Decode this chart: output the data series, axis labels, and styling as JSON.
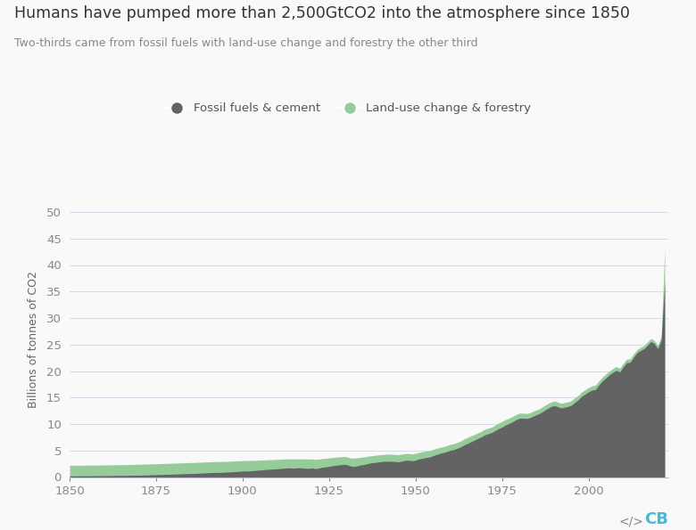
{
  "title": "Humans have pumped more than 2,500GtCO2 into the atmosphere since 1850",
  "subtitle": "Two-thirds came from fossil fuels with land-use change and forestry the other third",
  "ylabel": "Billions of tonnes of CO2",
  "fossil_color": "#636363",
  "luc_color": "#96cc9a",
  "background_color": "#f9f9f9",
  "ylim": [
    0,
    52
  ],
  "yticks": [
    0,
    5,
    10,
    15,
    20,
    25,
    30,
    35,
    40,
    45,
    50
  ],
  "xlim": [
    1850,
    2023
  ],
  "xticks": [
    1850,
    1875,
    1900,
    1925,
    1950,
    1975,
    2000
  ],
  "years": [
    1850,
    1851,
    1852,
    1853,
    1854,
    1855,
    1856,
    1857,
    1858,
    1859,
    1860,
    1861,
    1862,
    1863,
    1864,
    1865,
    1866,
    1867,
    1868,
    1869,
    1870,
    1871,
    1872,
    1873,
    1874,
    1875,
    1876,
    1877,
    1878,
    1879,
    1880,
    1881,
    1882,
    1883,
    1884,
    1885,
    1886,
    1887,
    1888,
    1889,
    1890,
    1891,
    1892,
    1893,
    1894,
    1895,
    1896,
    1897,
    1898,
    1899,
    1900,
    1901,
    1902,
    1903,
    1904,
    1905,
    1906,
    1907,
    1908,
    1909,
    1910,
    1911,
    1912,
    1913,
    1914,
    1915,
    1916,
    1917,
    1918,
    1919,
    1920,
    1921,
    1922,
    1923,
    1924,
    1925,
    1926,
    1927,
    1928,
    1929,
    1930,
    1931,
    1932,
    1933,
    1934,
    1935,
    1936,
    1937,
    1938,
    1939,
    1940,
    1941,
    1942,
    1943,
    1944,
    1945,
    1946,
    1947,
    1948,
    1949,
    1950,
    1951,
    1952,
    1953,
    1954,
    1955,
    1956,
    1957,
    1958,
    1959,
    1960,
    1961,
    1962,
    1963,
    1964,
    1965,
    1966,
    1967,
    1968,
    1969,
    1970,
    1971,
    1972,
    1973,
    1974,
    1975,
    1976,
    1977,
    1978,
    1979,
    1980,
    1981,
    1982,
    1983,
    1984,
    1985,
    1986,
    1987,
    1988,
    1989,
    1990,
    1991,
    1992,
    1993,
    1994,
    1995,
    1996,
    1997,
    1998,
    1999,
    2000,
    2001,
    2002,
    2003,
    2004,
    2005,
    2006,
    2007,
    2008,
    2009,
    2010,
    2011,
    2012,
    2013,
    2014,
    2015,
    2016,
    2017,
    2018,
    2019,
    2020,
    2021,
    2022
  ],
  "fossil": [
    0.2,
    0.2,
    0.21,
    0.21,
    0.22,
    0.22,
    0.23,
    0.24,
    0.24,
    0.25,
    0.26,
    0.26,
    0.27,
    0.28,
    0.29,
    0.29,
    0.3,
    0.31,
    0.32,
    0.33,
    0.34,
    0.36,
    0.38,
    0.4,
    0.42,
    0.44,
    0.46,
    0.48,
    0.5,
    0.52,
    0.54,
    0.56,
    0.58,
    0.61,
    0.63,
    0.65,
    0.67,
    0.7,
    0.73,
    0.76,
    0.8,
    0.83,
    0.85,
    0.87,
    0.88,
    0.91,
    0.94,
    0.98,
    1.02,
    1.07,
    1.12,
    1.13,
    1.15,
    1.2,
    1.26,
    1.31,
    1.37,
    1.43,
    1.47,
    1.51,
    1.56,
    1.6,
    1.66,
    1.73,
    1.68,
    1.67,
    1.74,
    1.72,
    1.65,
    1.6,
    1.72,
    1.57,
    1.67,
    1.83,
    1.91,
    2.01,
    2.12,
    2.22,
    2.28,
    2.38,
    2.35,
    2.11,
    1.97,
    2.07,
    2.26,
    2.35,
    2.5,
    2.65,
    2.72,
    2.82,
    2.9,
    2.95,
    2.97,
    2.97,
    2.92,
    2.85,
    3.0,
    3.13,
    3.17,
    3.06,
    3.18,
    3.4,
    3.54,
    3.69,
    3.76,
    4.01,
    4.24,
    4.44,
    4.61,
    4.79,
    5.05,
    5.17,
    5.41,
    5.67,
    6.05,
    6.32,
    6.65,
    6.95,
    7.28,
    7.56,
    7.96,
    8.16,
    8.38,
    8.75,
    9.14,
    9.42,
    9.81,
    10.09,
    10.41,
    10.81,
    11.09,
    11.09,
    11.04,
    11.18,
    11.5,
    11.76,
    12.06,
    12.47,
    12.87,
    13.24,
    13.47,
    13.29,
    13.03,
    13.15,
    13.3,
    13.53,
    14.08,
    14.55,
    15.24,
    15.65,
    16.08,
    16.41,
    16.53,
    17.38,
    18.13,
    18.68,
    19.29,
    19.75,
    20.14,
    19.81,
    20.76,
    21.57,
    21.64,
    22.59,
    23.44,
    23.88,
    24.2,
    24.86,
    25.56,
    25.17,
    24.21,
    25.87,
    36.8
  ],
  "luc": [
    2.2,
    2.2,
    2.21,
    2.21,
    2.22,
    2.23,
    2.24,
    2.24,
    2.25,
    2.26,
    2.27,
    2.28,
    2.29,
    2.3,
    2.31,
    2.32,
    2.33,
    2.35,
    2.36,
    2.38,
    2.4,
    2.42,
    2.44,
    2.46,
    2.48,
    2.5,
    2.52,
    2.54,
    2.56,
    2.58,
    2.61,
    2.63,
    2.65,
    2.67,
    2.7,
    2.72,
    2.74,
    2.77,
    2.79,
    2.82,
    2.85,
    2.88,
    2.9,
    2.92,
    2.93,
    2.95,
    2.97,
    3.0,
    3.03,
    3.06,
    3.08,
    3.1,
    3.12,
    3.14,
    3.16,
    3.18,
    3.21,
    3.24,
    3.27,
    3.29,
    3.32,
    3.35,
    3.38,
    3.42,
    3.4,
    3.4,
    3.42,
    3.43,
    3.4,
    3.38,
    3.42,
    3.33,
    3.38,
    3.48,
    3.53,
    3.6,
    3.67,
    3.75,
    3.8,
    3.86,
    3.82,
    3.63,
    3.55,
    3.61,
    3.72,
    3.78,
    3.9,
    4.0,
    4.07,
    4.15,
    4.22,
    4.27,
    4.3,
    4.3,
    4.26,
    4.21,
    4.32,
    4.41,
    4.45,
    4.34,
    4.46,
    4.65,
    4.78,
    4.9,
    4.97,
    5.19,
    5.4,
    5.57,
    5.73,
    5.89,
    6.15,
    6.28,
    6.53,
    6.78,
    7.17,
    7.45,
    7.76,
    8.03,
    8.33,
    8.6,
    9.01,
    9.2,
    9.42,
    9.8,
    10.19,
    10.47,
    10.85,
    11.1,
    11.4,
    11.78,
    12.06,
    12.04,
    11.98,
    12.11,
    12.42,
    12.67,
    12.95,
    13.37,
    13.77,
    14.12,
    14.35,
    14.17,
    13.91,
    14.03,
    14.18,
    14.4,
    14.93,
    15.38,
    16.05,
    16.45,
    16.88,
    17.2,
    17.33,
    18.15,
    18.88,
    19.42,
    19.99,
    20.45,
    20.84,
    20.51,
    21.43,
    22.22,
    22.29,
    23.22,
    24.05,
    24.48,
    24.8,
    25.44,
    26.13,
    25.76,
    24.83,
    26.48,
    43.2
  ]
}
